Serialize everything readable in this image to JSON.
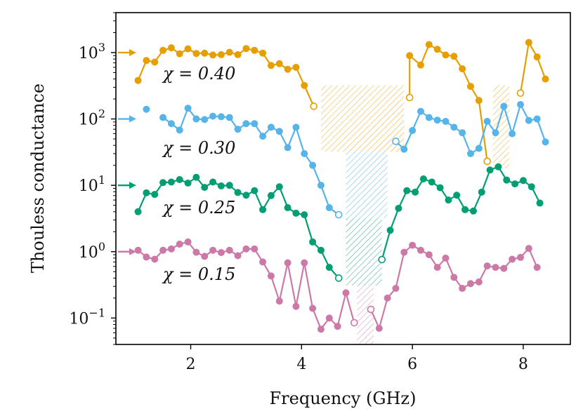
{
  "chart_data": {
    "type": "line",
    "xlabel": "Frequency (GHz)",
    "ylabel": "Thouless conductance",
    "yscale": "log",
    "xlim": [
      0.65,
      8.85
    ],
    "ylim": [
      0.04,
      4000
    ],
    "xticks": [
      {
        "value": 2,
        "label": "2"
      },
      {
        "value": 4,
        "label": "4"
      },
      {
        "value": 6,
        "label": "6"
      },
      {
        "value": 8,
        "label": "8"
      }
    ],
    "yticks": [
      {
        "value": 1000,
        "base": "10",
        "exp": "3"
      },
      {
        "value": 100,
        "base": "10",
        "exp": "2"
      },
      {
        "value": 10,
        "base": "10",
        "exp": "1"
      },
      {
        "value": 1,
        "base": "10",
        "exp": "0"
      },
      {
        "value": 0.1,
        "base": "10",
        "exp": "−1"
      }
    ],
    "series": [
      {
        "name": "chi-0.40",
        "label": "χ = 0.40",
        "color": "#E69F00",
        "arrow_y": 1000,
        "segments": [
          [
            [
              1.05,
              380
            ],
            [
              1.2,
              760
            ],
            [
              1.35,
              720
            ],
            [
              1.5,
              1080
            ],
            [
              1.65,
              1180
            ],
            [
              1.8,
              960
            ],
            [
              1.95,
              1140
            ],
            [
              2.1,
              970
            ],
            [
              2.25,
              980
            ],
            [
              2.4,
              920
            ],
            [
              2.55,
              930
            ],
            [
              2.7,
              1010
            ],
            [
              2.85,
              930
            ],
            [
              3.0,
              1150
            ],
            [
              3.15,
              1080
            ],
            [
              3.3,
              980
            ],
            [
              3.45,
              640
            ],
            [
              3.6,
              680
            ],
            [
              3.75,
              560
            ],
            [
              3.9,
              600
            ],
            [
              4.05,
              320
            ]
          ],
          [
            [
              5.95,
              900
            ],
            [
              6.15,
              650
            ],
            [
              6.3,
              1320
            ],
            [
              6.45,
              1120
            ],
            [
              6.6,
              920
            ],
            [
              6.75,
              880
            ],
            [
              6.9,
              570
            ],
            [
              7.05,
              310
            ],
            [
              7.2,
              190
            ]
          ],
          [
            [
              8.1,
              1420
            ],
            [
              8.25,
              860
            ],
            [
              8.4,
              400
            ]
          ]
        ],
        "dangling": [
          [
            [
              4.05,
              320
            ],
            [
              4.22,
              155
            ]
          ],
          [
            [
              5.95,
              900
            ],
            [
              5.95,
              210
            ]
          ],
          [
            [
              7.2,
              190
            ],
            [
              7.35,
              23
            ]
          ],
          [
            [
              7.95,
              245
            ],
            [
              8.1,
              1420
            ]
          ]
        ],
        "open_points": [
          [
            4.22,
            155
          ],
          [
            5.95,
            210
          ],
          [
            7.35,
            23
          ],
          [
            7.95,
            245
          ]
        ]
      },
      {
        "name": "chi-0.30",
        "label": "χ = 0.30",
        "color": "#56B4E9",
        "arrow_y": 100,
        "segments": [
          [
            [
              1.5,
              105
            ],
            [
              1.65,
              85
            ],
            [
              1.8,
              68
            ],
            [
              1.95,
              145
            ],
            [
              2.1,
              100
            ],
            [
              2.25,
              98
            ],
            [
              2.4,
              110
            ],
            [
              2.55,
              108
            ],
            [
              2.7,
              105
            ],
            [
              2.85,
              70
            ],
            [
              3.0,
              85
            ],
            [
              3.15,
              85
            ],
            [
              3.3,
              55
            ],
            [
              3.45,
              75
            ],
            [
              3.6,
              65
            ],
            [
              3.75,
              37
            ],
            [
              3.9,
              75
            ],
            [
              4.05,
              30
            ],
            [
              4.2,
              20
            ],
            [
              4.35,
              10
            ],
            [
              4.5,
              4.6
            ]
          ],
          [
            [
              5.85,
              35
            ],
            [
              6.0,
              67
            ],
            [
              6.15,
              130
            ],
            [
              6.3,
              105
            ],
            [
              6.45,
              96
            ],
            [
              6.6,
              92
            ],
            [
              6.75,
              75
            ],
            [
              6.9,
              62
            ],
            [
              7.05,
              30
            ],
            [
              7.2,
              36
            ],
            [
              7.35,
              92
            ],
            [
              7.5,
              62
            ],
            [
              7.65,
              155
            ],
            [
              7.8,
              60
            ],
            [
              7.95,
              165
            ],
            [
              8.1,
              95
            ],
            [
              8.25,
              100
            ],
            [
              8.4,
              45
            ]
          ]
        ],
        "dangling": [
          [
            [
              4.5,
              4.6
            ],
            [
              4.67,
              3.6
            ]
          ],
          [
            [
              5.7,
              46
            ],
            [
              5.85,
              35
            ]
          ]
        ],
        "open_points": [
          [
            4.67,
            3.6
          ],
          [
            5.7,
            46
          ]
        ],
        "isolated_points": [
          [
            1.2,
            140
          ]
        ]
      },
      {
        "name": "chi-0.25",
        "label": "χ = 0.25",
        "color": "#009E73",
        "arrow_y": 10,
        "segments": [
          [
            [
              1.05,
              4
            ],
            [
              1.2,
              7.7
            ],
            [
              1.35,
              7.3
            ],
            [
              1.5,
              11
            ],
            [
              1.65,
              11.2
            ],
            [
              1.8,
              12.2
            ],
            [
              1.95,
              10.8
            ],
            [
              2.1,
              13.2
            ],
            [
              2.25,
              9.3
            ],
            [
              2.4,
              11.2
            ],
            [
              2.55,
              9.8
            ],
            [
              2.7,
              10
            ],
            [
              2.85,
              7.8
            ],
            [
              3.0,
              7.1
            ],
            [
              3.15,
              8.3
            ],
            [
              3.3,
              4.3
            ],
            [
              3.45,
              7
            ],
            [
              3.6,
              9.5
            ],
            [
              3.75,
              4.6
            ],
            [
              3.9,
              3.8
            ],
            [
              4.05,
              3.6
            ],
            [
              4.2,
              1.4
            ],
            [
              4.35,
              1.05
            ],
            [
              4.5,
              0.58
            ]
          ],
          [
            [
              5.6,
              2.1
            ],
            [
              5.75,
              4.5
            ],
            [
              5.9,
              8.3
            ],
            [
              6.05,
              7.9
            ],
            [
              6.2,
              12.5
            ],
            [
              6.35,
              11.2
            ],
            [
              6.5,
              9.2
            ],
            [
              6.65,
              6
            ],
            [
              6.8,
              7.1
            ],
            [
              6.95,
              4.3
            ],
            [
              7.1,
              4.1
            ],
            [
              7.25,
              7.9
            ],
            [
              7.4,
              17
            ],
            [
              7.55,
              19
            ],
            [
              7.7,
              12
            ],
            [
              7.85,
              10.5
            ],
            [
              8.0,
              11.8
            ],
            [
              8.15,
              9.5
            ],
            [
              8.3,
              5.4
            ]
          ]
        ],
        "dangling": [
          [
            [
              4.5,
              0.58
            ],
            [
              4.67,
              0.4
            ]
          ],
          [
            [
              5.6,
              2.1
            ],
            [
              5.45,
              0.76
            ]
          ]
        ],
        "open_points": [
          [
            4.67,
            0.4
          ],
          [
            5.45,
            0.76
          ]
        ]
      },
      {
        "name": "chi-0.15",
        "label": "χ = 0.15",
        "color": "#CC79A7",
        "arrow_y": 1,
        "segments": [
          [
            [
              1.05,
              1.05
            ],
            [
              1.2,
              0.83
            ],
            [
              1.35,
              0.77
            ],
            [
              1.5,
              1.05
            ],
            [
              1.65,
              1.1
            ],
            [
              1.8,
              1.3
            ],
            [
              1.95,
              1.4
            ],
            [
              2.1,
              0.98
            ],
            [
              2.25,
              0.85
            ],
            [
              2.4,
              1.05
            ],
            [
              2.55,
              0.97
            ],
            [
              2.7,
              1.05
            ],
            [
              2.85,
              0.87
            ],
            [
              3.0,
              1.1
            ],
            [
              3.15,
              1.1
            ],
            [
              3.3,
              0.7
            ],
            [
              3.45,
              0.43
            ],
            [
              3.6,
              0.18
            ],
            [
              3.75,
              0.68
            ],
            [
              3.9,
              0.15
            ],
            [
              4.05,
              0.68
            ],
            [
              4.2,
              0.14
            ],
            [
              4.35,
              0.068
            ],
            [
              4.5,
              0.1
            ],
            [
              4.65,
              0.075
            ],
            [
              4.8,
              0.24
            ]
          ],
          [
            [
              5.4,
              0.07
            ],
            [
              5.55,
              0.2
            ],
            [
              5.7,
              0.28
            ],
            [
              5.85,
              0.98
            ],
            [
              6.0,
              1.25
            ],
            [
              6.15,
              1.05
            ],
            [
              6.3,
              0.9
            ],
            [
              6.45,
              0.58
            ],
            [
              6.6,
              0.8
            ],
            [
              6.75,
              0.41
            ],
            [
              6.9,
              0.28
            ],
            [
              7.05,
              0.33
            ],
            [
              7.2,
              0.35
            ],
            [
              7.35,
              0.61
            ],
            [
              7.5,
              0.58
            ],
            [
              7.65,
              0.56
            ],
            [
              7.8,
              0.77
            ],
            [
              7.95,
              0.82
            ],
            [
              8.1,
              1.12
            ],
            [
              8.25,
              0.58
            ]
          ]
        ],
        "dangling": [
          [
            [
              4.8,
              0.24
            ],
            [
              4.95,
              0.085
            ]
          ],
          [
            [
              5.25,
              0.135
            ],
            [
              5.4,
              0.07
            ]
          ]
        ],
        "open_points": [
          [
            4.95,
            0.085
          ],
          [
            5.25,
            0.135
          ]
        ]
      }
    ],
    "gaps": [
      {
        "series": "chi-0.40",
        "x0": 4.35,
        "x1": 5.85,
        "y0": 32,
        "y1": 320
      },
      {
        "series": "chi-0.40",
        "x0": 7.45,
        "x1": 7.75,
        "y0": 18,
        "y1": 320
      },
      {
        "series": "chi-0.30",
        "x0": 4.8,
        "x1": 5.55,
        "y0": 3.2,
        "y1": 32
      },
      {
        "series": "chi-0.25",
        "x0": 4.8,
        "x1": 5.45,
        "y0": 0.31,
        "y1": 3.2
      },
      {
        "series": "chi-0.15",
        "x0": 5.0,
        "x1": 5.3,
        "y0": 0.04,
        "y1": 0.31
      }
    ]
  }
}
